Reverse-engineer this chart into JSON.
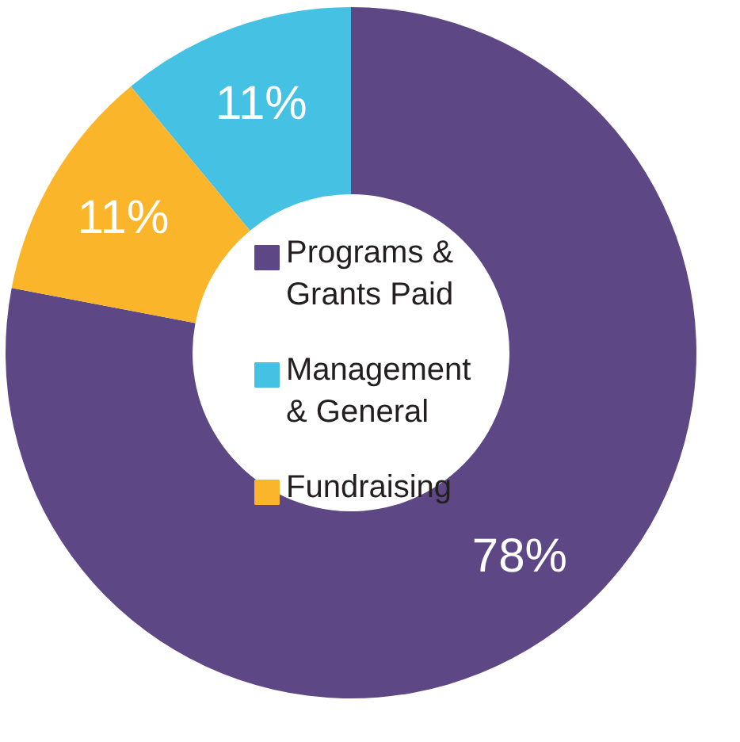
{
  "chart_data": {
    "type": "donut",
    "categories": [
      "Programs & Grants Paid",
      "Management & General",
      "Fundraising"
    ],
    "values": [
      78,
      11,
      11
    ],
    "colors": [
      "#5e4785",
      "#45c1e4",
      "#fbb52a"
    ],
    "value_labels": [
      "78%",
      "11%",
      "11%"
    ],
    "legend": "center"
  }
}
